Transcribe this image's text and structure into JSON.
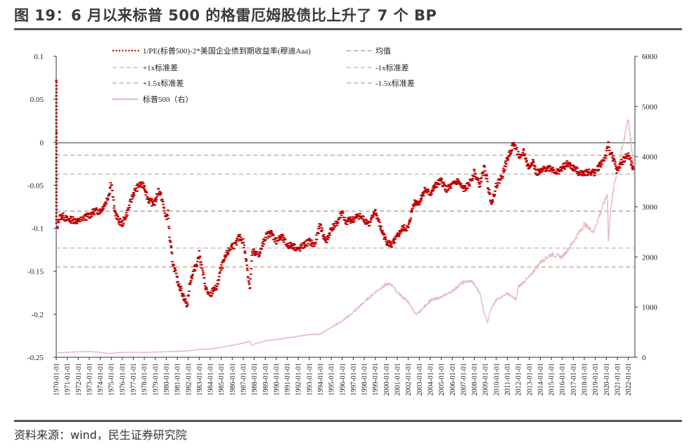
{
  "header": {
    "title": "图 19：6 月以来标普 500 的格雷厄姆股债比上升了 7 个 BP"
  },
  "footer": {
    "source": "资料来源：wind，民生证券研究院"
  },
  "colors": {
    "ratio": "#c00000",
    "mean": "#7f7f7f",
    "sd1": "#a6a6a6",
    "sd15": "#c0876b",
    "sp500": "#e7b9b9",
    "axis": "#333333"
  },
  "chart_data": {
    "type": "line",
    "title": "图 19：6 月以来标普 500 的格雷厄姆股债比上升了 7 个 BP",
    "xlabel": "",
    "ylabel": "",
    "y_left_lim": [
      -0.25,
      0.1
    ],
    "y_left_ticks": [
      "0.1",
      "0.05",
      "0",
      "-0.05",
      "-0.1",
      "-0.15",
      "-0.2",
      "-0.25"
    ],
    "y_right_lim": [
      0,
      6000
    ],
    "y_right_ticks": [
      "6000",
      "5000",
      "4000",
      "3000",
      "2000",
      "1000",
      "0"
    ],
    "x_ticks": [
      "1970-01-01",
      "1971-01-01",
      "1972-01-01",
      "1973-01-01",
      "1974-01-01",
      "1975-01-01",
      "1976-01-01",
      "1977-01-01",
      "1978-01-01",
      "1979-01-01",
      "1980-01-01",
      "1981-01-01",
      "1982-01-01",
      "1983-01-01",
      "1984-01-01",
      "1985-01-01",
      "1986-01-01",
      "1987-01-01",
      "1988-01-01",
      "1989-01-01",
      "1990-01-01",
      "1991-01-01",
      "1992-01-01",
      "1993-01-01",
      "1994-01-01",
      "1995-01-01",
      "1996-01-01",
      "1997-01-01",
      "1998-01-01",
      "1999-01-01",
      "2000-01-01",
      "2001-01-01",
      "2002-01-01",
      "2003-01-01",
      "2004-01-01",
      "2005-01-01",
      "2006-01-01",
      "2007-01-01",
      "2008-01-01",
      "2009-01-01",
      "2010-01-01",
      "2011-01-01",
      "2012-01-01",
      "2013-01-01",
      "2014-01-01",
      "2015-01-01",
      "2016-01-01",
      "2017-01-01",
      "2018-01-01",
      "2019-01-01",
      "2020-01-01",
      "2021-01-01",
      "2022-01-01"
    ],
    "legend": {
      "ratio": "1/PE(标普500)-2*美国企业债到期收益率(穆迪Aaa)",
      "mean": "均值",
      "plus1": "+1x标准差",
      "minus1": "-1x标准差",
      "plus15": "+1.5x标准差",
      "minus15": "-1.5x标准差",
      "sp500": "标普500（右）"
    },
    "reference_lines": {
      "mean": -0.08,
      "plus1": -0.037,
      "minus1": -0.123,
      "plus15": -0.015,
      "minus15": -0.145
    },
    "series": [
      {
        "name": "1/PE(标普500)-2*美国企业债到期收益率(穆迪Aaa)",
        "axis": "left",
        "x": [
          1970.0,
          1970.05,
          1970.1,
          1970.2,
          1970.5,
          1971.0,
          1971.5,
          1972.0,
          1972.5,
          1973.0,
          1973.5,
          1974.0,
          1974.5,
          1974.8,
          1975.0,
          1975.3,
          1975.6,
          1976.0,
          1976.5,
          1977.0,
          1977.5,
          1978.0,
          1978.3,
          1978.6,
          1979.0,
          1979.3,
          1979.6,
          1980.0,
          1980.15,
          1980.3,
          1980.6,
          1981.0,
          1981.3,
          1981.6,
          1981.9,
          1982.2,
          1982.5,
          1982.8,
          1983.0,
          1983.3,
          1983.6,
          1984.0,
          1984.3,
          1984.6,
          1984.9,
          1985.2,
          1985.5,
          1986.0,
          1986.3,
          1986.6,
          1987.0,
          1987.3,
          1987.6,
          1987.8,
          1987.9,
          1988.0,
          1988.5,
          1989.0,
          1989.5,
          1990.0,
          1990.5,
          1991.0,
          1991.5,
          1992.0,
          1992.5,
          1993.0,
          1993.5,
          1994.0,
          1994.3,
          1994.6,
          1995.0,
          1995.5,
          1996.0,
          1996.3,
          1996.6,
          1997.0,
          1997.5,
          1998.0,
          1998.5,
          1999.0,
          1999.5,
          2000.0,
          2000.5,
          2001.0,
          2001.5,
          2002.0,
          2002.5,
          2003.0,
          2003.5,
          2004.0,
          2004.5,
          2005.0,
          2005.5,
          2006.0,
          2006.5,
          2007.0,
          2007.5,
          2008.0,
          2008.5,
          2008.9,
          2009.1,
          2009.3,
          2009.6,
          2010.0,
          2010.5,
          2011.0,
          2011.3,
          2011.6,
          2011.9,
          2012.2,
          2012.5,
          2012.8,
          2013.0,
          2013.3,
          2013.6,
          2014.0,
          2014.5,
          2015.0,
          2015.5,
          2016.0,
          2016.5,
          2017.0,
          2017.5,
          2018.0,
          2018.5,
          2019.0,
          2019.5,
          2020.0,
          2020.2,
          2020.3,
          2020.5,
          2020.8,
          2021.0,
          2021.3,
          2021.6,
          2022.0,
          2022.3,
          2022.5
        ],
        "y": [
          0.07,
          -0.02,
          -0.1,
          -0.09,
          -0.085,
          -0.09,
          -0.09,
          -0.092,
          -0.088,
          -0.085,
          -0.08,
          -0.08,
          -0.07,
          -0.06,
          -0.045,
          -0.08,
          -0.09,
          -0.095,
          -0.08,
          -0.06,
          -0.05,
          -0.05,
          -0.065,
          -0.07,
          -0.07,
          -0.055,
          -0.065,
          -0.09,
          -0.08,
          -0.11,
          -0.14,
          -0.16,
          -0.17,
          -0.18,
          -0.19,
          -0.16,
          -0.15,
          -0.14,
          -0.13,
          -0.15,
          -0.17,
          -0.18,
          -0.17,
          -0.17,
          -0.15,
          -0.14,
          -0.13,
          -0.12,
          -0.12,
          -0.11,
          -0.115,
          -0.14,
          -0.17,
          -0.13,
          -0.125,
          -0.13,
          -0.13,
          -0.11,
          -0.105,
          -0.115,
          -0.11,
          -0.12,
          -0.12,
          -0.125,
          -0.12,
          -0.115,
          -0.12,
          -0.095,
          -0.11,
          -0.115,
          -0.1,
          -0.095,
          -0.08,
          -0.095,
          -0.09,
          -0.09,
          -0.085,
          -0.09,
          -0.095,
          -0.08,
          -0.1,
          -0.115,
          -0.12,
          -0.11,
          -0.1,
          -0.1,
          -0.07,
          -0.07,
          -0.055,
          -0.06,
          -0.05,
          -0.045,
          -0.055,
          -0.05,
          -0.045,
          -0.055,
          -0.05,
          -0.035,
          -0.05,
          -0.03,
          -0.04,
          -0.055,
          -0.07,
          -0.05,
          -0.04,
          -0.02,
          -0.01,
          -0.002,
          -0.01,
          -0.02,
          -0.01,
          -0.025,
          -0.03,
          -0.02,
          -0.035,
          -0.035,
          -0.03,
          -0.03,
          -0.035,
          -0.03,
          -0.025,
          -0.03,
          -0.035,
          -0.035,
          -0.035,
          -0.035,
          -0.025,
          -0.015,
          -0.002,
          -0.01,
          -0.015,
          -0.025,
          -0.035,
          -0.025,
          -0.02,
          -0.015,
          -0.025,
          -0.035
        ]
      },
      {
        "name": "标普500（右）",
        "axis": "right",
        "x": [
          1970.0,
          1971.0,
          1972.0,
          1973.0,
          1974.0,
          1974.8,
          1975.5,
          1976.0,
          1977.0,
          1978.0,
          1979.0,
          1980.0,
          1981.0,
          1982.0,
          1983.0,
          1984.0,
          1985.0,
          1986.0,
          1987.0,
          1987.6,
          1987.8,
          1988.0,
          1989.0,
          1990.0,
          1991.0,
          1992.0,
          1993.0,
          1994.0,
          1995.0,
          1996.0,
          1997.0,
          1998.0,
          1999.0,
          2000.0,
          2000.5,
          2001.0,
          2001.5,
          2002.0,
          2002.7,
          2003.0,
          2004.0,
          2005.0,
          2006.0,
          2007.0,
          2007.8,
          2008.5,
          2008.9,
          2009.2,
          2009.5,
          2010.0,
          2011.0,
          2011.8,
          2012.0,
          2013.0,
          2014.0,
          2015.0,
          2016.0,
          2016.5,
          2017.0,
          2018.0,
          2018.9,
          2019.0,
          2019.5,
          2020.0,
          2020.1,
          2020.2,
          2020.4,
          2020.8,
          2021.0,
          2021.5,
          2021.9,
          2022.0,
          2022.3,
          2022.5
        ],
        "y": [
          85,
          100,
          110,
          115,
          100,
          75,
          90,
          100,
          100,
          96,
          105,
          110,
          120,
          125,
          160,
          165,
          200,
          240,
          280,
          320,
          230,
          260,
          330,
          350,
          390,
          420,
          450,
          460,
          600,
          720,
          900,
          1100,
          1300,
          1450,
          1450,
          1300,
          1200,
          1100,
          850,
          900,
          1130,
          1200,
          1320,
          1500,
          1520,
          1280,
          900,
          700,
          950,
          1140,
          1280,
          1150,
          1400,
          1600,
          1900,
          2050,
          2000,
          2150,
          2300,
          2650,
          2500,
          2600,
          2900,
          3200,
          3300,
          2300,
          3000,
          3500,
          3750,
          4200,
          4700,
          4750,
          4150,
          3750
        ]
      }
    ]
  }
}
